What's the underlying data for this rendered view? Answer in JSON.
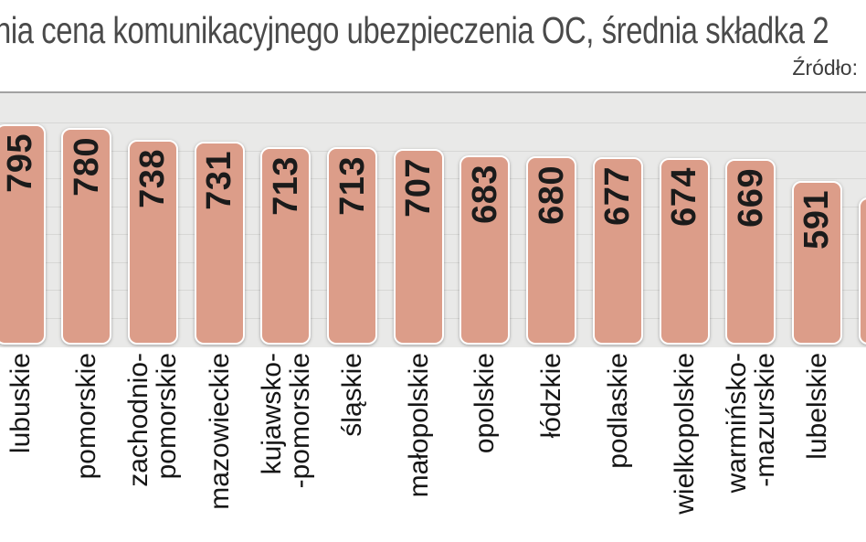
{
  "title": "nia cena komunikacyjnego ubezpieczenia OC, średnia składka 2",
  "source_label": "Źródło:",
  "chart_data": {
    "type": "bar",
    "orientation": "vertical",
    "categories": [
      "lubuskie",
      "pomorskie",
      "zachodnio-\npomorskie",
      "mazowieckie",
      "kujawsko-\n-pomorskie",
      "śląskie",
      "małopolskie",
      "opolskie",
      "łódzkie",
      "podlaskie",
      "wielkopolskie",
      "warmińsko-\n-mazurskie",
      "lubelskie",
      ""
    ],
    "values": [
      795,
      780,
      738,
      731,
      713,
      713,
      707,
      683,
      680,
      677,
      674,
      669,
      591,
      null
    ],
    "partial_last_bar": {
      "estimated_value": 532,
      "value_visible": false,
      "note": "bar cut off at right edge of image"
    },
    "value_labels": "rotated -90 deg, bold, at top inside each bar",
    "category_labels_rotation": -90,
    "ylim": [
      0,
      900
    ],
    "grid": {
      "horizontal": true,
      "interval": 100
    },
    "legend": "none",
    "colors": {
      "bar_fill": "#dc9d89",
      "bar_border": "#ffffff",
      "plot_background": "#e9e9e8",
      "gridline": "#d7d7d5",
      "plot_top_border": "#a2a2a2",
      "value_text": "#1b1b1b",
      "label_text": "#161616",
      "title_text": "#4a4a4a"
    }
  }
}
